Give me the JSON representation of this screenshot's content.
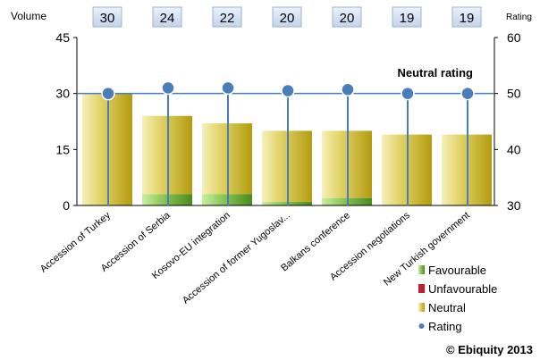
{
  "chart_data": {
    "type": "bar",
    "left_axis_label": "Volume",
    "right_axis_label": "Rating",
    "title_annotation": "Neutral rating",
    "credit": "© Ebiquity  2013",
    "categories": [
      "Accession of Turkey",
      "Accession of Serbia",
      "Kosovo-EU integration",
      "Accession of former Yugoslav...",
      "Balkans conference",
      "Accession negotiations",
      "New Turkish government"
    ],
    "volume_labels": [
      "30",
      "24",
      "22",
      "20",
      "20",
      "19",
      "19"
    ],
    "series": [
      {
        "name": "Favourable",
        "values": [
          0,
          3,
          3,
          1,
          2,
          0,
          0
        ],
        "color": "#5aa02c"
      },
      {
        "name": "Unfavourable",
        "values": [
          0,
          0,
          0,
          0,
          0,
          0,
          0
        ],
        "color": "#c0202a"
      },
      {
        "name": "Neutral",
        "values": [
          30,
          21,
          19,
          19,
          18,
          19,
          19
        ],
        "color": "#c8b400"
      },
      {
        "name": "Rating",
        "values": [
          50,
          51,
          51,
          50.5,
          50.7,
          50,
          50
        ],
        "color": "#4a7ebb"
      }
    ],
    "left_ylim": [
      0,
      45
    ],
    "left_yticks": [
      "0",
      "15",
      "30",
      "45"
    ],
    "right_ylim": [
      30,
      60
    ],
    "right_yticks": [
      "30",
      "40",
      "50",
      "60"
    ],
    "reference_line": 50,
    "grid": false,
    "legend_position": "bottom-right"
  }
}
